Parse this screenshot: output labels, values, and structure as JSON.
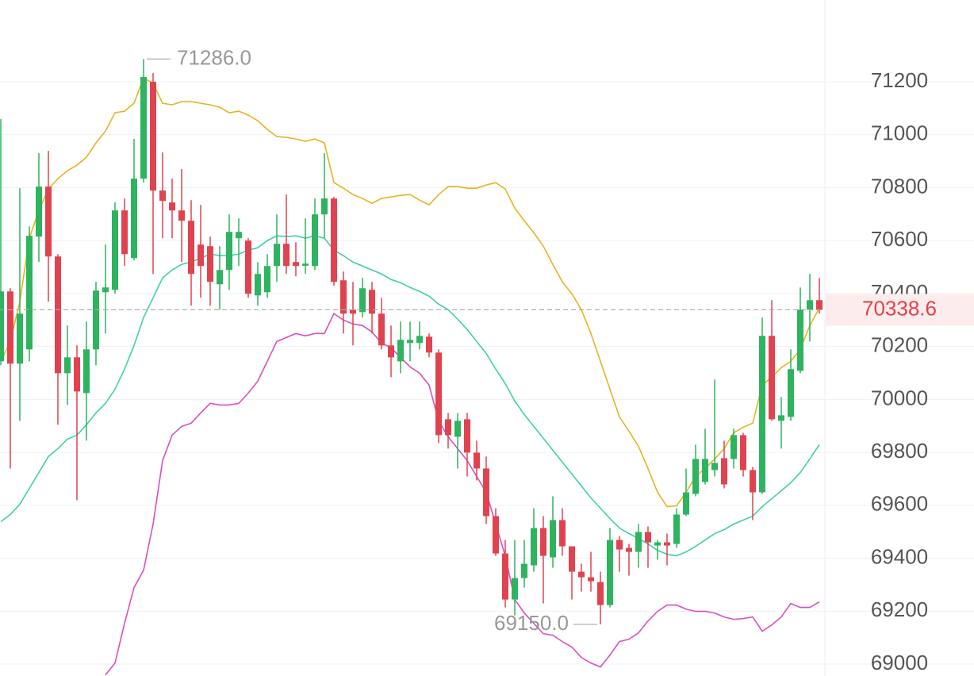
{
  "chart_data": {
    "type": "candlestick",
    "up_color": "#2eb35e",
    "down_color": "#e0434f",
    "candles": {
      "open": [
        70144,
        70408,
        70135,
        70189,
        70615,
        70804,
        70540,
        70099,
        70159,
        70024,
        70189,
        70405,
        70414,
        70714,
        70534,
        70834,
        71200,
        70789,
        70744,
        70714,
        70675,
        70585,
        70579,
        70435,
        70489,
        70609,
        70600,
        70393,
        70405,
        70504,
        70588,
        70519,
        70505,
        70504,
        70699,
        70759,
        70450,
        70339,
        70330,
        70414,
        70324,
        70204,
        70144,
        70213,
        70213,
        70237,
        70177,
        69925,
        69859,
        69925,
        69799,
        69739,
        69559,
        69418,
        69244,
        69325,
        69373,
        69514,
        69403,
        69544,
        69445,
        69349,
        69328,
        69310,
        69223,
        69469,
        69439,
        69424,
        69499,
        69448,
        69460,
        69454,
        69565,
        69643,
        69688,
        69733,
        69778,
        69775,
        69865,
        69733,
        69649,
        70240,
        69919,
        69934,
        70108,
        70339,
        70375
      ],
      "high": [
        71059,
        70420,
        70798,
        70654,
        70930,
        70939,
        70549,
        70279,
        70204,
        70294,
        70444,
        70585,
        70744,
        70759,
        70984,
        71286,
        71233,
        70933,
        70834,
        70870,
        70753,
        70735,
        70615,
        70579,
        70699,
        70684,
        70609,
        70519,
        70549,
        70699,
        70774,
        70594,
        70684,
        70759,
        70930,
        70765,
        70483,
        70444,
        70459,
        70444,
        70384,
        70279,
        70294,
        70294,
        70294,
        70249,
        70189,
        69949,
        69949,
        69949,
        69844,
        69784,
        69589,
        69469,
        69469,
        69469,
        69589,
        69559,
        69634,
        69589,
        69445,
        69379,
        69424,
        69349,
        69514,
        69484,
        69454,
        69529,
        69520,
        69469,
        69493,
        69589,
        69739,
        69829,
        69889,
        70075,
        69844,
        69889,
        69874,
        69745,
        70309,
        70375,
        70009,
        70189,
        70423,
        70474,
        70459
      ],
      "low": [
        70129,
        69739,
        69919,
        70144,
        70519,
        70369,
        69904,
        69979,
        69619,
        69844,
        70129,
        70249,
        70399,
        70504,
        70525,
        70819,
        70474,
        70609,
        70609,
        70519,
        70354,
        70384,
        70354,
        70339,
        70414,
        70504,
        70384,
        70354,
        70384,
        70444,
        70474,
        70465,
        70474,
        70489,
        70609,
        70429,
        70249,
        70204,
        70309,
        70249,
        70189,
        70084,
        70099,
        70144,
        70189,
        70159,
        69835,
        69814,
        69739,
        69709,
        69694,
        69529,
        69409,
        69214,
        69184,
        69289,
        69349,
        69229,
        69364,
        69409,
        69244,
        69274,
        69274,
        69150,
        69214,
        69349,
        69334,
        69364,
        69364,
        69394,
        69373,
        69439,
        69559,
        69634,
        69679,
        69709,
        69664,
        69739,
        69709,
        69544,
        69643,
        69919,
        69814,
        69919,
        70099,
        70219,
        70324
      ],
      "close": [
        70408,
        70135,
        70324,
        70618,
        70804,
        70540,
        70099,
        70159,
        70030,
        70189,
        70411,
        70423,
        70714,
        70549,
        70834,
        71218,
        70789,
        70750,
        70714,
        70675,
        70474,
        70504,
        70444,
        70489,
        70633,
        70633,
        70399,
        70474,
        70504,
        70588,
        70504,
        70504,
        70513,
        70699,
        70759,
        70444,
        70324,
        70324,
        70420,
        70324,
        70204,
        70159,
        70225,
        70225,
        70240,
        70177,
        69865,
        69865,
        69919,
        69799,
        69739,
        69559,
        69418,
        69244,
        69325,
        69379,
        69514,
        69409,
        69544,
        69445,
        69349,
        69328,
        69313,
        69223,
        69469,
        69433,
        69424,
        69499,
        69460,
        69460,
        69448,
        69565,
        69649,
        69775,
        69775,
        69760,
        69679,
        69865,
        69733,
        69649,
        70240,
        69925,
        69940,
        70114,
        70339,
        70375,
        70338.6
      ]
    },
    "bands": [
      {
        "color": "#e8b321",
        "values": [
          70144,
          70219,
          70369,
          70609,
          70714,
          70795,
          70834,
          70864,
          70885,
          70915,
          70969,
          71014,
          71083,
          71089,
          71119,
          71215,
          71194,
          71119,
          71113,
          71125,
          71125,
          71119,
          71113,
          71104,
          71083,
          71089,
          71074,
          71053,
          71020,
          70993,
          70990,
          70984,
          70975,
          70984,
          70969,
          70819,
          70798,
          70774,
          70759,
          70741,
          70759,
          70765,
          70771,
          70774,
          70753,
          70735,
          70774,
          70804,
          70804,
          70798,
          70798,
          70810,
          70819,
          70795,
          70723,
          70675,
          70630,
          70579,
          70510,
          70444,
          70399,
          70339,
          70249,
          70144,
          70039,
          69934,
          69880,
          69823,
          69739,
          69649,
          69595,
          69598,
          69649,
          69709,
          69739,
          69775,
          69814,
          69874,
          69895,
          69910,
          70054,
          70084,
          70120,
          70144,
          70189,
          70279,
          70345
        ]
      },
      {
        "color": "#3fd0aa",
        "values": [
          69538,
          69565,
          69604,
          69664,
          69724,
          69784,
          69814,
          69850,
          69865,
          69904,
          69949,
          69985,
          70039,
          70114,
          70204,
          70309,
          70384,
          70459,
          70489,
          70510,
          70519,
          70534,
          70549,
          70543,
          70543,
          70549,
          70564,
          70573,
          70600,
          70618,
          70615,
          70618,
          70609,
          70618,
          70609,
          70564,
          70543,
          70519,
          70504,
          70489,
          70474,
          70453,
          70441,
          70423,
          70408,
          70390,
          70360,
          70339,
          70303,
          70264,
          70219,
          70174,
          70114,
          70060,
          69994,
          69943,
          69898,
          69853,
          69808,
          69763,
          69718,
          69673,
          69628,
          69589,
          69550,
          69514,
          69493,
          69475,
          69454,
          69430,
          69415,
          69409,
          69424,
          69445,
          69469,
          69493,
          69508,
          69529,
          69544,
          69559,
          69595,
          69625,
          69655,
          69685,
          69724,
          69775,
          69829
        ]
      },
      {
        "color": "#d84fc0",
        "values": [
          null,
          null,
          null,
          null,
          null,
          null,
          null,
          null,
          null,
          null,
          null,
          68959,
          69004,
          69154,
          69289,
          69355,
          69529,
          69769,
          69865,
          69898,
          69910,
          69949,
          69985,
          69979,
          69979,
          69985,
          70024,
          70069,
          70144,
          70219,
          70234,
          70249,
          70240,
          70249,
          70249,
          70324,
          70300,
          70285,
          70279,
          70255,
          70213,
          70195,
          70159,
          70123,
          70099,
          70054,
          69919,
          69859,
          69814,
          69769,
          69709,
          69649,
          69529,
          69409,
          69244,
          69193,
          69154,
          69115,
          69109,
          69085,
          69064,
          69025,
          69004,
          68989,
          69034,
          69085,
          69094,
          69118,
          69163,
          69199,
          69223,
          69223,
          69208,
          69199,
          69199,
          69193,
          69178,
          69169,
          69172,
          69178,
          69124,
          69148,
          69178,
          69229,
          69214,
          69214,
          69235
        ]
      }
    ],
    "high_mark": {
      "value": 71286,
      "label": "71286.0"
    },
    "low_mark": {
      "value": 69150,
      "label": "69150.0"
    },
    "last_price": 70338.6,
    "ylim": [
      68955,
      71509
    ],
    "yticks": [
      69000,
      69200,
      69400,
      69600,
      69800,
      70000,
      70200,
      70400,
      70600,
      70800,
      71000,
      71200
    ],
    "grid": true
  }
}
